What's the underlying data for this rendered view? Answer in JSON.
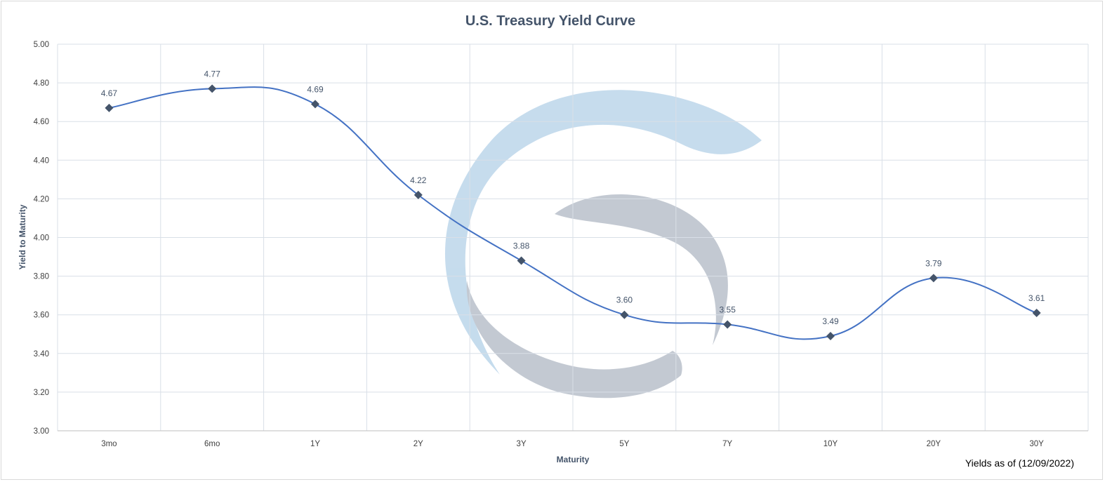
{
  "chart_data": {
    "type": "line",
    "title": "U.S. Treasury Yield Curve",
    "xlabel": "Maturity",
    "ylabel": "Yield to Maturity",
    "categories": [
      "3mo",
      "6mo",
      "1Y",
      "2Y",
      "3Y",
      "5Y",
      "7Y",
      "10Y",
      "20Y",
      "30Y"
    ],
    "values": [
      4.67,
      4.77,
      4.69,
      4.22,
      3.88,
      3.6,
      3.55,
      3.49,
      3.79,
      3.61
    ],
    "value_labels": [
      "4.67",
      "4.77",
      "4.69",
      "4.22",
      "3.88",
      "3.60",
      "3.55",
      "3.49",
      "3.79",
      "3.61"
    ],
    "ylim": [
      3.0,
      5.0
    ],
    "yticks": [
      "3.00",
      "3.20",
      "3.40",
      "3.60",
      "3.80",
      "4.00",
      "4.20",
      "4.40",
      "4.60",
      "4.80",
      "5.00"
    ],
    "grid": true,
    "smooth": true,
    "marker": "diamond",
    "colors": {
      "line": "#4472c4",
      "marker": "#44546a",
      "watermark_blue": "#bcd6ea",
      "watermark_gray": "#b9c0cb"
    },
    "note": "Yields as of (12/09/2022)"
  }
}
